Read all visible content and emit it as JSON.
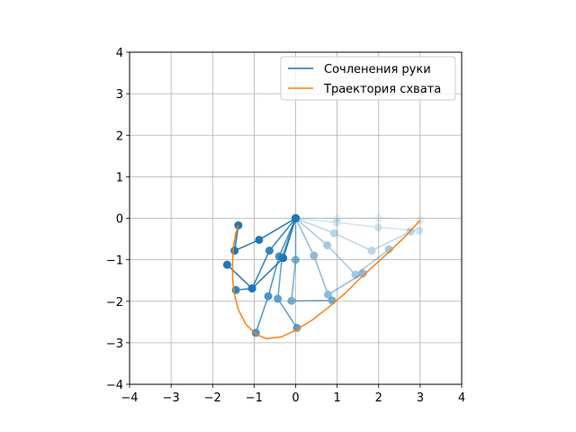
{
  "chart_data": {
    "type": "line",
    "title": "",
    "xlabel": "",
    "ylabel": "",
    "xlim": [
      -4,
      4
    ],
    "ylim": [
      -4,
      4
    ],
    "xticks": [
      -4,
      -3,
      -2,
      -1,
      0,
      1,
      2,
      3,
      4
    ],
    "yticks": [
      -4,
      -3,
      -2,
      -1,
      0,
      1,
      2,
      3,
      4
    ],
    "xtick_labels": [
      "−4",
      "−3",
      "−2",
      "−1",
      "0",
      "1",
      "2",
      "3",
      "4"
    ],
    "ytick_labels": [
      "−4",
      "−3",
      "−2",
      "−1",
      "0",
      "1",
      "2",
      "3",
      "4"
    ],
    "grid": true,
    "legend_position": "top-right",
    "colors": {
      "arm": "#1f77b4",
      "trajectory": "#ff7f0e"
    },
    "series": [
      {
        "name": "Сочленения руки",
        "kind": "arm-configurations",
        "configurations": [
          {
            "alpha": 0.1,
            "points": [
              [
                0,
                0
              ],
              [
                1.0,
                0.0
              ],
              [
                2.0,
                0.0
              ],
              [
                3.0,
                -0.05
              ]
            ]
          },
          {
            "alpha": 0.2,
            "points": [
              [
                0,
                0
              ],
              [
                0.99,
                -0.1
              ],
              [
                1.99,
                -0.22
              ],
              [
                2.97,
                -0.3
              ]
            ]
          },
          {
            "alpha": 0.3,
            "points": [
              [
                0,
                0
              ],
              [
                0.93,
                -0.36
              ],
              [
                1.83,
                -0.78
              ],
              [
                2.77,
                -0.32
              ]
            ]
          },
          {
            "alpha": 0.4,
            "points": [
              [
                0,
                0
              ],
              [
                0.76,
                -0.65
              ],
              [
                1.44,
                -1.36
              ],
              [
                2.25,
                -0.75
              ]
            ]
          },
          {
            "alpha": 0.5,
            "points": [
              [
                0,
                0
              ],
              [
                0.44,
                -0.9
              ],
              [
                0.78,
                -1.84
              ],
              [
                1.62,
                -1.33
              ]
            ]
          },
          {
            "alpha": 0.6,
            "points": [
              [
                0,
                0
              ],
              [
                0.0,
                -1.0
              ],
              [
                -0.1,
                -1.99
              ],
              [
                0.88,
                -1.98
              ]
            ]
          },
          {
            "alpha": 0.7,
            "points": [
              [
                0,
                0
              ],
              [
                -0.33,
                -0.94
              ],
              [
                -0.43,
                -1.94
              ],
              [
                0.03,
                -2.64
              ]
            ]
          },
          {
            "alpha": 0.8,
            "points": [
              [
                0,
                0
              ],
              [
                -0.4,
                -0.92
              ],
              [
                -0.66,
                -1.88
              ],
              [
                -0.96,
                -2.76
              ]
            ]
          },
          {
            "alpha": 0.9,
            "points": [
              [
                0,
                0
              ],
              [
                -0.63,
                -0.78
              ],
              [
                -1.05,
                -1.69
              ],
              [
                -1.44,
                -1.73
              ]
            ]
          },
          {
            "alpha": 1.0,
            "points": [
              [
                0,
                0
              ],
              [
                -0.88,
                -0.52
              ],
              [
                -1.47,
                -0.78
              ],
              [
                -1.38,
                -0.17
              ]
            ]
          },
          {
            "alpha": 1.0,
            "points": [
              [
                0,
                0
              ],
              [
                -0.3,
                -0.96
              ],
              [
                -1.05,
                -1.69
              ],
              [
                -1.65,
                -1.12
              ]
            ]
          }
        ]
      },
      {
        "name": "Траектория схвата",
        "kind": "trajectory",
        "x": [
          3.0,
          2.6,
          2.1,
          1.6,
          1.2,
          0.8,
          0.4,
          0.0,
          -0.35,
          -0.7,
          -0.95,
          -1.2,
          -1.38,
          -1.48,
          -1.52,
          -1.52,
          -1.5,
          -1.45,
          -1.38
        ],
        "y": [
          -0.05,
          -0.48,
          -0.95,
          -1.4,
          -1.8,
          -2.14,
          -2.45,
          -2.7,
          -2.86,
          -2.9,
          -2.8,
          -2.55,
          -2.2,
          -1.82,
          -1.45,
          -1.05,
          -0.7,
          -0.4,
          -0.17
        ]
      }
    ]
  }
}
